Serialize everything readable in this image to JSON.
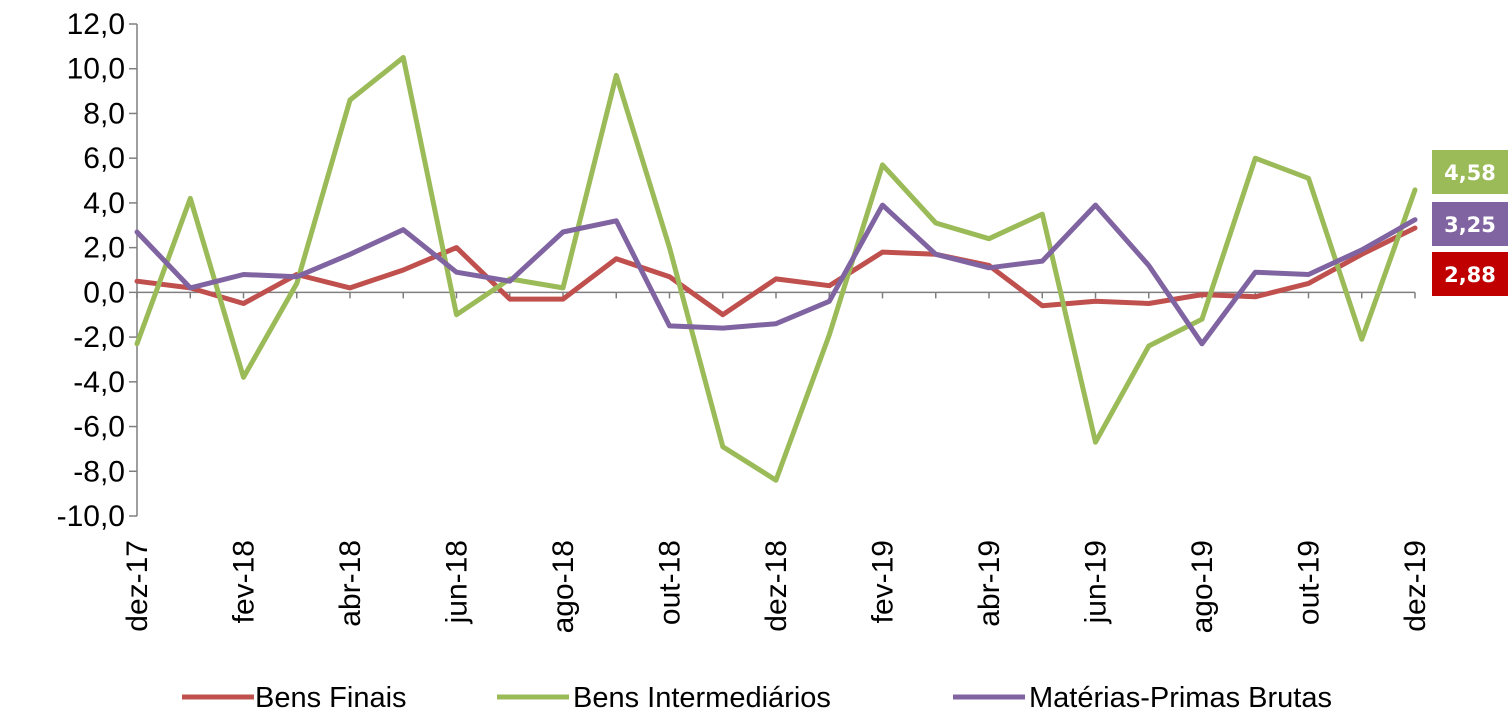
{
  "chart_data": {
    "type": "line",
    "title": "",
    "xlabel": "",
    "ylabel": "",
    "ylim": [
      -10,
      12
    ],
    "y_tick_step": 2,
    "y_tick_labels": [
      "12,0",
      "10,0",
      "8,0",
      "6,0",
      "4,0",
      "2,0",
      "0,0",
      "-2,0",
      "-4,0",
      "-6,0",
      "-8,0",
      "-10,0"
    ],
    "x": [
      "dez-17",
      "jan-18",
      "fev-18",
      "mar-18",
      "abr-18",
      "mai-18",
      "jun-18",
      "jul-18",
      "ago-18",
      "set-18",
      "out-18",
      "nov-18",
      "dez-18",
      "jan-19",
      "fev-19",
      "mar-19",
      "abr-19",
      "mai-19",
      "jun-19",
      "jul-19",
      "ago-19",
      "set-19",
      "out-19",
      "nov-19",
      "dez-19"
    ],
    "x_tick_labels": [
      "dez-17",
      "fev-18",
      "abr-18",
      "jun-18",
      "ago-18",
      "out-18",
      "dez-18",
      "fev-19",
      "abr-19",
      "jun-19",
      "ago-19",
      "out-19",
      "dez-19"
    ],
    "grid": false,
    "legend_position": "bottom",
    "series": [
      {
        "name": "Bens Finais",
        "color": "#C0504D",
        "values": [
          0.5,
          0.2,
          -0.5,
          0.8,
          0.2,
          1.0,
          2.0,
          -0.3,
          -0.3,
          1.5,
          0.7,
          -1.0,
          0.6,
          0.3,
          1.8,
          1.7,
          1.2,
          -0.6,
          -0.4,
          -0.5,
          -0.1,
          -0.2,
          0.4,
          1.7,
          2.88
        ],
        "end_label": "2,88",
        "end_label_color": "#C00000"
      },
      {
        "name": "Bens Intermediários",
        "color": "#9BBB59",
        "values": [
          -2.3,
          4.2,
          -3.8,
          0.4,
          8.6,
          10.5,
          -1.0,
          0.6,
          0.2,
          9.7,
          2.0,
          -6.9,
          -8.4,
          -1.9,
          5.7,
          3.1,
          2.4,
          3.5,
          -6.7,
          -2.4,
          -1.2,
          6.0,
          5.1,
          -2.1,
          4.58
        ],
        "end_label": "4,58",
        "end_label_color": "#9BBB59"
      },
      {
        "name": "Matérias-Primas Brutas",
        "color": "#8064A2",
        "values": [
          2.7,
          0.2,
          0.8,
          0.7,
          1.7,
          2.8,
          0.9,
          0.5,
          2.7,
          3.2,
          -1.5,
          -1.6,
          -1.4,
          -0.4,
          3.9,
          1.7,
          1.1,
          1.4,
          3.9,
          1.2,
          -2.3,
          0.9,
          0.8,
          1.9,
          3.25
        ],
        "end_label": "3,25",
        "end_label_color": "#8064A2"
      }
    ]
  }
}
